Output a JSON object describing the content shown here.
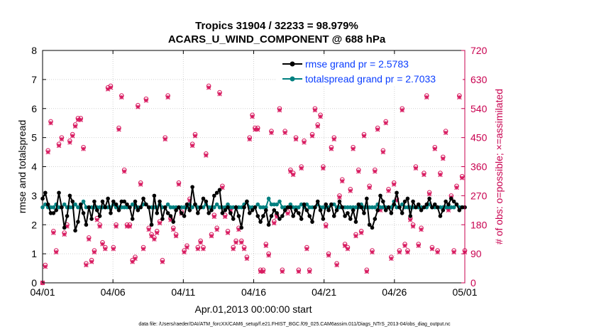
{
  "chart_data": {
    "type": "line",
    "title_line1": "Tropics 31904 / 32233 = 98.979%",
    "title_line2": "ACARS_U_WIND_COMPONENT @ 688 hPa",
    "xlabel": "Apr.01,2013 00:00:00 start",
    "ylabel": "rmse and totalspread",
    "ylabel_right": "# of obs: o=possible; ×=assimilated",
    "xlim": [
      0,
      30
    ],
    "ylim": [
      0,
      8
    ],
    "ylim_right": [
      0,
      720
    ],
    "x_ticks": [
      0,
      5,
      10,
      15,
      20,
      25,
      30
    ],
    "x_tick_labels": [
      "04/01",
      "04/06",
      "04/11",
      "04/16",
      "04/21",
      "04/26",
      "05/01"
    ],
    "y_ticks": [
      0,
      1,
      2,
      3,
      4,
      5,
      6,
      7,
      8
    ],
    "y_tick_labels": [
      "0",
      "1",
      "2",
      "3",
      "4",
      "5",
      "6",
      "7",
      "8"
    ],
    "y_right_ticks": [
      0,
      90,
      180,
      270,
      360,
      450,
      540,
      630,
      720
    ],
    "y_right_tick_labels": [
      "0",
      "90",
      "180",
      "270",
      "360",
      "450",
      "540",
      "630",
      "720"
    ],
    "legend": [
      {
        "name": "rmse grand pr = 2.5783",
        "color": "#000000"
      },
      {
        "name": "totalspread grand pr = 2.7033",
        "color": "#008080"
      }
    ],
    "series": [
      {
        "name": "rmse",
        "color": "#000000",
        "values": [
          2.9,
          3.1,
          2.7,
          2.4,
          2.4,
          2.5,
          3.1,
          2.6,
          1.9,
          2.3,
          3.0,
          2.8,
          1.8,
          2.1,
          2.7,
          2.4,
          2.0,
          2.6,
          2.2,
          2.8,
          2.5,
          2.3,
          2.8,
          2.6,
          2.9,
          2.4,
          2.8,
          2.7,
          2.5,
          2.8,
          2.8,
          2.7,
          2.6,
          2.2,
          2.8,
          2.5,
          2.6,
          2.9,
          2.7,
          2.6,
          2.0,
          3.0,
          2.4,
          2.8,
          2.2,
          2.6,
          2.4,
          2.3,
          2.1,
          2.5,
          2.6,
          2.4,
          2.3,
          2.7,
          2.5,
          3.3,
          2.7,
          2.4,
          2.6,
          2.9,
          2.8,
          2.4,
          2.5,
          3.0,
          3.1,
          3.2,
          2.4,
          2.5,
          2.6,
          2.4,
          2.2,
          2.6,
          2.3,
          1.9,
          2.6,
          2.8,
          2.4,
          2.5,
          2.6,
          2.3,
          2.1,
          2.3,
          2.5,
          2.0,
          2.3,
          2.5,
          2.4,
          2.2,
          2.3,
          2.5,
          2.6,
          2.6,
          2.3,
          2.5,
          2.4,
          2.2,
          2.7,
          2.5,
          2.3,
          2.1,
          2.6,
          2.8,
          2.5,
          2.2,
          2.7,
          2.5,
          2.7,
          2.3,
          2.5,
          2.8,
          2.6,
          2.3,
          2.4,
          2.2,
          2.5,
          2.1,
          2.7,
          2.6,
          2.4,
          2.9,
          2.0,
          1.9,
          2.2,
          2.5,
          3.0,
          2.8,
          2.5,
          2.6,
          2.4,
          2.7,
          3.1,
          2.6,
          2.4,
          2.8,
          2.9,
          2.3,
          2.8,
          2.6,
          2.7,
          2.5,
          2.6,
          2.7,
          2.9,
          2.6,
          2.7,
          2.6,
          2.3,
          2.5,
          2.8,
          2.7,
          2.9,
          2.8,
          2.7,
          2.5,
          2.6,
          2.6
        ]
      },
      {
        "name": "totalspread",
        "color": "#008080",
        "values": [
          2.6,
          2.7,
          2.6,
          2.6,
          2.6,
          2.7,
          2.6,
          2.6,
          2.7,
          2.6,
          2.6,
          2.6,
          2.7,
          2.6,
          2.6,
          2.8,
          2.6,
          2.6,
          2.6,
          2.6,
          2.6,
          2.6,
          2.6,
          2.6,
          2.6,
          2.6,
          2.7,
          2.6,
          2.6,
          2.6,
          2.6,
          2.6,
          2.6,
          2.7,
          2.6,
          2.6,
          2.6,
          2.7,
          2.7,
          2.6,
          2.6,
          2.6,
          2.6,
          2.7,
          2.6,
          2.6,
          2.7,
          2.6,
          2.6,
          2.6,
          2.6,
          2.6,
          2.6,
          2.6,
          2.7,
          2.6,
          2.7,
          2.6,
          2.6,
          2.6,
          2.7,
          2.6,
          2.6,
          2.6,
          2.7,
          2.6,
          2.6,
          2.6,
          2.7,
          2.6,
          2.6,
          2.6,
          2.6,
          2.6,
          2.7,
          2.8,
          2.6,
          2.6,
          2.6,
          2.7,
          2.6,
          2.6,
          2.6,
          2.9,
          2.7,
          2.7,
          2.7,
          2.8,
          2.6,
          2.6,
          2.6,
          2.7,
          2.6,
          2.6,
          2.6,
          2.7,
          2.6,
          2.7,
          2.6,
          2.6,
          2.6,
          2.7,
          2.6,
          2.6,
          2.6,
          2.6,
          2.7,
          2.7,
          2.6,
          2.6,
          2.6,
          2.6,
          2.6,
          2.6,
          2.6,
          2.6,
          2.6,
          2.7,
          2.6,
          2.6,
          2.6,
          2.6,
          2.6,
          2.7,
          2.6,
          2.6,
          2.6,
          2.6,
          2.6,
          2.8,
          2.6,
          2.6,
          2.7,
          2.6,
          2.6,
          2.6,
          2.6,
          2.6,
          2.6,
          2.6,
          2.6,
          2.6,
          2.7,
          2.6,
          2.6,
          2.6,
          2.6,
          2.6,
          2.6,
          2.6,
          2.6,
          2.6,
          2.7,
          2.6,
          2.6,
          2.6
        ]
      },
      {
        "name": "obs possible",
        "axis": "right",
        "marker": "o",
        "values": [
          0,
          55,
          410,
          500,
          160,
          100,
          430,
          450,
          155,
          180,
          440,
          460,
          490,
          510,
          510,
          420,
          60,
          140,
          70,
          100,
          200,
          180,
          125,
          110,
          605,
          610,
          110,
          180,
          480,
          580,
          350,
          180,
          180,
          70,
          80,
          550,
          310,
          110,
          570,
          170,
          150,
          140,
          160,
          190,
          70,
          450,
          580,
          200,
          170,
          150,
          310,
          220,
          100,
          115,
          260,
          430,
          460,
          110,
          130,
          110,
          400,
          610,
          150,
          210,
          170,
          590,
          300,
          210,
          160,
          230,
          110,
          130,
          170,
          130,
          110,
          80,
          450,
          520,
          480,
          480,
          40,
          40,
          120,
          90,
          470,
          190,
          210,
          540,
          40,
          470,
          220,
          350,
          340,
          450,
          40,
          360,
          440,
          110,
          40,
          460,
          540,
          490,
          520,
          360,
          180,
          90,
          420,
          450,
          60,
          270,
          320,
          120,
          110,
          290,
          420,
          150,
          350,
          160,
          460,
          40,
          300,
          100,
          350,
          480,
          230,
          410,
          500,
          290,
          80,
          310,
          260,
          100,
          540,
          120,
          100,
          200,
          180,
          360,
          120,
          170,
          340,
          580,
          280,
          110,
          420,
          100,
          340,
          390,
          470,
          230,
          270,
          100,
          300,
          580,
          330,
          100
        ]
      },
      {
        "name": "obs assimilated",
        "axis": "right",
        "marker": "x",
        "values": [
          0,
          50,
          405,
          495,
          155,
          95,
          425,
          445,
          150,
          175,
          435,
          455,
          485,
          505,
          505,
          415,
          55,
          135,
          65,
          95,
          195,
          175,
          120,
          105,
          600,
          605,
          105,
          175,
          475,
          575,
          345,
          175,
          175,
          65,
          75,
          545,
          305,
          105,
          565,
          165,
          145,
          135,
          155,
          185,
          65,
          445,
          575,
          195,
          165,
          145,
          305,
          215,
          95,
          110,
          255,
          425,
          455,
          105,
          125,
          105,
          395,
          605,
          145,
          205,
          165,
          585,
          295,
          205,
          155,
          225,
          105,
          125,
          165,
          125,
          105,
          75,
          445,
          515,
          475,
          475,
          35,
          35,
          115,
          85,
          465,
          185,
          205,
          535,
          35,
          465,
          215,
          345,
          335,
          445,
          35,
          355,
          435,
          105,
          35,
          455,
          535,
          485,
          515,
          355,
          175,
          85,
          415,
          445,
          55,
          265,
          315,
          115,
          105,
          285,
          415,
          145,
          345,
          155,
          455,
          35,
          295,
          95,
          345,
          475,
          225,
          405,
          495,
          285,
          75,
          305,
          255,
          95,
          535,
          115,
          95,
          195,
          175,
          355,
          115,
          165,
          335,
          575,
          275,
          105,
          415,
          95,
          335,
          385,
          465,
          225,
          265,
          95,
          295,
          575,
          325,
          95
        ]
      }
    ]
  },
  "footer": "data file: /Users/raeder/DAI/ATM_forcXX/CAM6_setup/f.e21.FHIST_BGC.f09_025.CAM6assim.011/Diags_NTrS_2013-04/obs_diag_output.nc"
}
